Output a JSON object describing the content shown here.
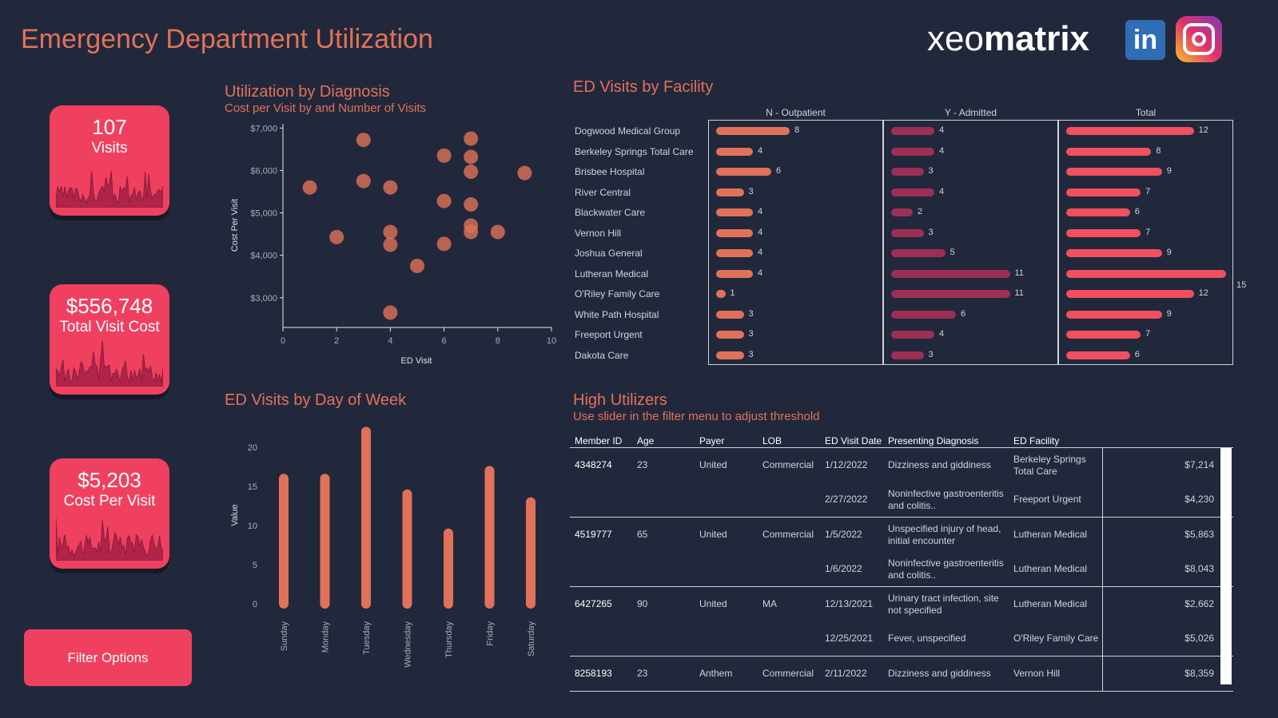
{
  "title": "Emergency Department Utilization",
  "logo": {
    "brand": "xeomatrix",
    "icons": [
      "linkedin-icon",
      "instagram-icon"
    ]
  },
  "kpis": [
    {
      "value": "107",
      "label": "Visits"
    },
    {
      "value": "$556,748",
      "label": "Total Visit Cost"
    },
    {
      "value": "$5,203",
      "label": "Cost Per Visit"
    }
  ],
  "filter_button": "Filter Options",
  "colors": {
    "accent": "#e0725a",
    "kpi": "#f0405f",
    "outpatient": "#e0725a",
    "admitted": "#9c2f55",
    "total": "#f0505f",
    "background": "#22283b"
  },
  "scatter": {
    "title": "Utilization by Diagnosis",
    "subtitle": "Cost per Visit by and Number of Visits"
  },
  "bars": {
    "title": "ED Visits by Day of Week"
  },
  "chart_data": [
    {
      "type": "scatter",
      "xlabel": "ED Visit",
      "ylabel": "Cost Per Visit",
      "xlim": [
        0,
        10
      ],
      "ylim": [
        2300,
        7100
      ],
      "xticks": [
        "0",
        "2",
        "4",
        "6",
        "8",
        "10"
      ],
      "yticks": [
        "$3,000",
        "$4,000",
        "$5,000",
        "$6,000",
        "$7,000"
      ],
      "points": [
        [
          1,
          5600
        ],
        [
          2,
          4430
        ],
        [
          3,
          6720
        ],
        [
          3,
          5750
        ],
        [
          4,
          5600
        ],
        [
          4,
          4550
        ],
        [
          4,
          4250
        ],
        [
          4,
          2650
        ],
        [
          5,
          3750
        ],
        [
          6,
          6350
        ],
        [
          6,
          5280
        ],
        [
          6,
          4270
        ],
        [
          7,
          6750
        ],
        [
          7,
          6320
        ],
        [
          7,
          5970
        ],
        [
          7,
          5200
        ],
        [
          7,
          4700
        ],
        [
          7,
          4550
        ],
        [
          8,
          4550
        ],
        [
          9,
          5940
        ]
      ]
    },
    {
      "type": "bar",
      "ylabel": "Value",
      "ylim": [
        0,
        23
      ],
      "yticks": [
        "0",
        "5",
        "10",
        "15",
        "20"
      ],
      "categories": [
        "Sunday",
        "Monday",
        "Tuesday",
        "Wednesday",
        "Thursday",
        "Friday",
        "Saturday"
      ],
      "values": [
        16,
        16,
        22,
        14,
        9,
        17,
        13
      ]
    }
  ],
  "facility": {
    "title": "ED Visits by Facility",
    "columns": [
      "N - Outpatient",
      "Y - Admitted",
      "Total"
    ],
    "rows": [
      {
        "name": "Dogwood Medical Group",
        "n": 8,
        "y": 4,
        "t": 12
      },
      {
        "name": "Berkeley Springs Total Care",
        "n": 4,
        "y": 4,
        "t": 8
      },
      {
        "name": "Brisbee Hospital",
        "n": 6,
        "y": 3,
        "t": 9
      },
      {
        "name": "River Central",
        "n": 3,
        "y": 4,
        "t": 7
      },
      {
        "name": "Blackwater Care",
        "n": 4,
        "y": 2,
        "t": 6
      },
      {
        "name": "Vernon Hill",
        "n": 4,
        "y": 3,
        "t": 7
      },
      {
        "name": "Joshua General",
        "n": 4,
        "y": 5,
        "t": 9
      },
      {
        "name": "Lutheran Medical",
        "n": 4,
        "y": 11,
        "t": 15
      },
      {
        "name": "O'Riley Family Care",
        "n": 1,
        "y": 11,
        "t": 12
      },
      {
        "name": "White Path Hospital",
        "n": 3,
        "y": 6,
        "t": 9
      },
      {
        "name": "Freeport Urgent",
        "n": 3,
        "y": 4,
        "t": 7
      },
      {
        "name": "Dakota Care",
        "n": 3,
        "y": 3,
        "t": 6
      }
    ]
  },
  "high": {
    "title": "High Utilizers",
    "subtitle": "Use slider in the filter menu to adjust threshold",
    "columns": [
      "Member ID",
      "Age",
      "Payer",
      "LOB",
      "ED Visit Date",
      "Presenting Diagnosis",
      "ED Facility"
    ],
    "groups": [
      {
        "id": "4348274",
        "age": "23",
        "payer": "United",
        "lob": "Commercial",
        "visits": [
          {
            "date": "1/12/2022",
            "dx": "Dizziness and giddiness",
            "fac": "Berkeley Springs Total Care",
            "cost": "$7,214"
          },
          {
            "date": "2/27/2022",
            "dx": "Noninfective gastroenteritis and colitis..",
            "fac": "Freeport Urgent",
            "cost": "$4,230"
          }
        ]
      },
      {
        "id": "4519777",
        "age": "65",
        "payer": "United",
        "lob": "Commercial",
        "visits": [
          {
            "date": "1/5/2022",
            "dx": "Unspecified injury of head, initial encounter",
            "fac": "Lutheran Medical",
            "cost": "$5,863"
          },
          {
            "date": "1/6/2022",
            "dx": "Noninfective gastroenteritis and colitis..",
            "fac": "Lutheran Medical",
            "cost": "$8,043"
          }
        ]
      },
      {
        "id": "6427265",
        "age": "90",
        "payer": "United",
        "lob": "MA",
        "visits": [
          {
            "date": "12/13/2021",
            "dx": "Urinary tract infection, site not specified",
            "fac": "Lutheran Medical",
            "cost": "$2,662"
          },
          {
            "date": "12/25/2021",
            "dx": "Fever, unspecified",
            "fac": "O'Riley Family Care",
            "cost": "$5,026"
          }
        ]
      },
      {
        "id": "8258193",
        "age": "23",
        "payer": "Anthem",
        "lob": "Commercial",
        "visits": [
          {
            "date": "2/11/2022",
            "dx": "Dizziness and giddiness",
            "fac": "Vernon Hill",
            "cost": "$8,359"
          }
        ]
      }
    ]
  }
}
